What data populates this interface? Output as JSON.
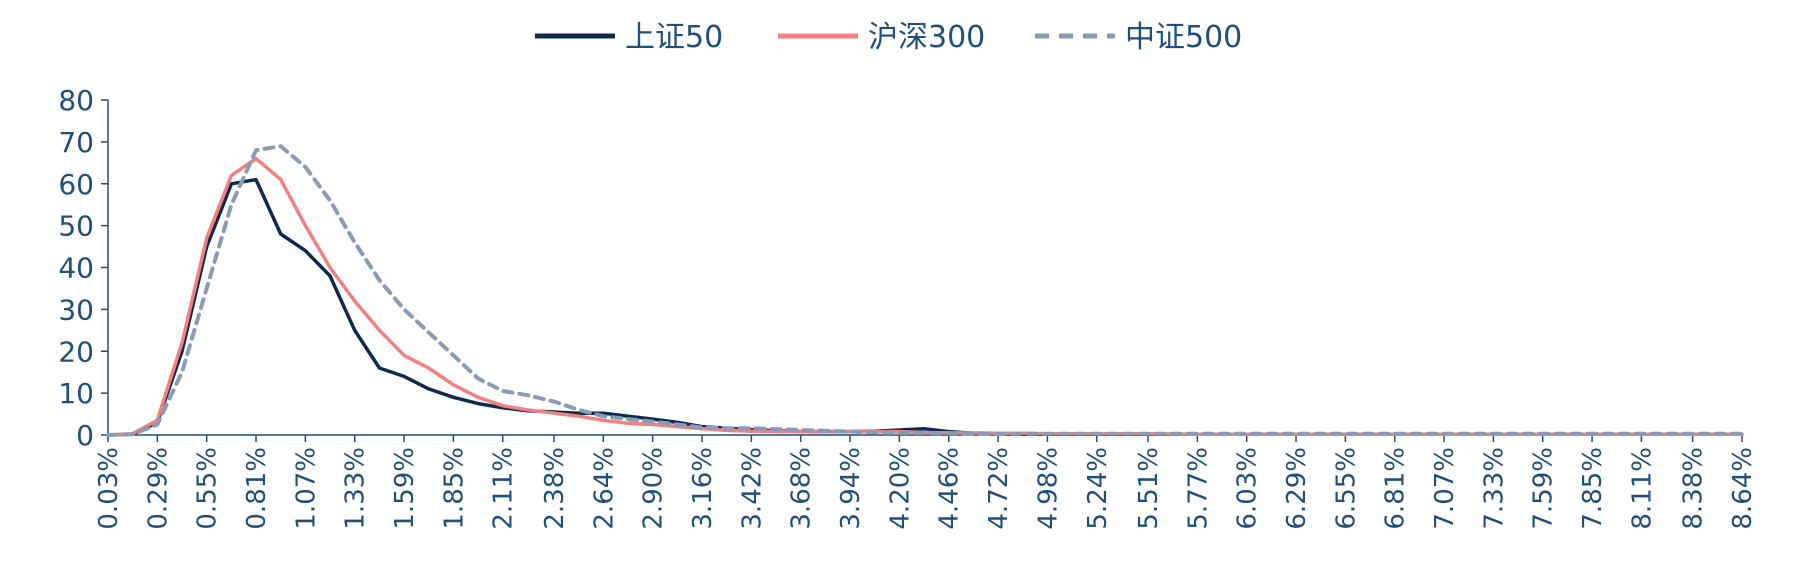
{
  "chart_data": {
    "type": "line",
    "title": "",
    "xlabel": "",
    "ylabel": "",
    "ylim": [
      0,
      80
    ],
    "yticks": [
      0,
      10,
      20,
      30,
      40,
      50,
      60,
      70,
      80
    ],
    "x_tick_labels": [
      "0.03%",
      "0.29%",
      "0.55%",
      "0.81%",
      "1.07%",
      "1.33%",
      "1.59%",
      "1.85%",
      "2.11%",
      "2.38%",
      "2.64%",
      "2.90%",
      "3.16%",
      "3.42%",
      "3.68%",
      "3.94%",
      "4.20%",
      "4.46%",
      "4.72%",
      "4.98%",
      "5.24%",
      "5.51%",
      "5.77%",
      "6.03%",
      "6.29%",
      "6.55%",
      "6.81%",
      "7.07%",
      "7.33%",
      "7.59%",
      "7.85%",
      "8.11%",
      "8.38%",
      "8.64%"
    ],
    "legend_position": "top-center",
    "grid": false,
    "series": [
      {
        "name": "上证50",
        "color": "#0d2a4e",
        "dash": "solid",
        "x": [
          0.03,
          0.16,
          0.29,
          0.42,
          0.55,
          0.68,
          0.81,
          0.94,
          1.07,
          1.2,
          1.33,
          1.46,
          1.59,
          1.72,
          1.85,
          1.98,
          2.11,
          2.24,
          2.38,
          2.51,
          2.64,
          2.77,
          2.9,
          3.03,
          3.16,
          3.29,
          3.42,
          3.55,
          3.68,
          3.81,
          3.94,
          4.07,
          4.2,
          4.33,
          4.46,
          4.59,
          4.72,
          4.85,
          4.98,
          5.11,
          5.24,
          5.51,
          5.77,
          6.03,
          6.29,
          6.55,
          6.81,
          7.07,
          7.33,
          7.59,
          7.85,
          8.11,
          8.38,
          8.64
        ],
        "y": [
          0,
          0.2,
          3,
          20,
          45,
          60,
          61,
          48,
          44,
          38,
          25,
          16,
          14,
          11,
          9,
          7.5,
          6.5,
          5.8,
          5.5,
          5.2,
          5.2,
          4.5,
          3.8,
          3,
          2,
          1.6,
          1.3,
          1,
          0.8,
          0.8,
          0.8,
          0.9,
          1.2,
          1.5,
          0.8,
          0.4,
          0.3,
          0.2,
          0.2,
          0.2,
          0.2,
          0.2,
          0.2,
          0.2,
          0.2,
          0.2,
          0.2,
          0.2,
          0.2,
          0.2,
          0.2,
          0.2,
          0.2,
          0.2
        ]
      },
      {
        "name": "沪深300",
        "color": "#f28080",
        "dash": "solid",
        "x": [
          0.03,
          0.16,
          0.29,
          0.42,
          0.55,
          0.68,
          0.81,
          0.94,
          1.07,
          1.2,
          1.33,
          1.46,
          1.59,
          1.72,
          1.85,
          1.98,
          2.11,
          2.24,
          2.38,
          2.51,
          2.64,
          2.77,
          2.9,
          3.03,
          3.16,
          3.29,
          3.42,
          3.55,
          3.68,
          3.81,
          3.94,
          4.07,
          4.2,
          4.33,
          4.46,
          4.59,
          4.72,
          4.85,
          4.98,
          5.11,
          5.24,
          5.51,
          5.77,
          6.03,
          6.29,
          6.55,
          6.81,
          7.07,
          7.33,
          7.59,
          7.85,
          8.11,
          8.38,
          8.64
        ],
        "y": [
          0,
          0.3,
          3.5,
          22,
          47,
          62,
          66,
          61,
          50,
          40,
          32,
          25,
          19,
          16,
          12,
          9,
          7,
          6,
          5.2,
          4.5,
          3.5,
          2.8,
          2.5,
          2,
          1.5,
          1.1,
          0.9,
          0.8,
          0.8,
          0.8,
          0.8,
          0.8,
          0.8,
          0.6,
          0.5,
          0.5,
          0.4,
          0.4,
          0.3,
          0.3,
          0.3,
          0.3,
          0.2,
          0.2,
          0.2,
          0.2,
          0.2,
          0.2,
          0.2,
          0.2,
          0.2,
          0.2,
          0.2,
          0.2
        ]
      },
      {
        "name": "中证500",
        "color": "#8a9bb5",
        "dash": "dashed",
        "x": [
          0.03,
          0.16,
          0.29,
          0.42,
          0.55,
          0.68,
          0.81,
          0.94,
          1.07,
          1.2,
          1.33,
          1.46,
          1.59,
          1.72,
          1.85,
          1.98,
          2.11,
          2.24,
          2.38,
          2.51,
          2.64,
          2.77,
          2.9,
          3.03,
          3.16,
          3.29,
          3.42,
          3.55,
          3.68,
          3.81,
          3.94,
          4.07,
          4.2,
          4.33,
          4.46,
          4.59,
          4.72,
          4.85,
          4.98,
          5.11,
          5.24,
          5.51,
          5.77,
          6.03,
          6.29,
          6.55,
          6.81,
          7.07,
          7.33,
          7.59,
          7.85,
          8.11,
          8.38,
          8.64
        ],
        "y": [
          0,
          0.2,
          2.5,
          15,
          35,
          55,
          68,
          69,
          64,
          56,
          46,
          37,
          30,
          24.5,
          19,
          13.5,
          10.5,
          9.5,
          8,
          6,
          4.5,
          3.8,
          3.2,
          2.5,
          1.8,
          1.6,
          1.6,
          1.4,
          1.2,
          1,
          0.8,
          0.6,
          0.5,
          0.5,
          0.4,
          0.3,
          0.3,
          0.3,
          0.3,
          0.3,
          0.3,
          0.3,
          0.3,
          0.3,
          0.3,
          0.3,
          0.3,
          0.3,
          0.3,
          0.3,
          0.3,
          0.3,
          0.3,
          0.3
        ]
      }
    ]
  }
}
